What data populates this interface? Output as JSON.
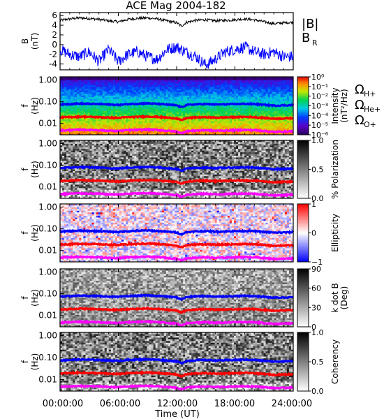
{
  "title": "ACE Mag 2004-182",
  "xlabel": "Time (UT)",
  "x_ticks": [
    "00:00:00",
    "06:00:00",
    "12:00:00",
    "18:00:00",
    "24:00:00"
  ],
  "x_tick_hours": [
    0,
    6,
    12,
    18,
    24
  ],
  "xlim_hours": [
    0,
    24
  ],
  "freq_ticks": [
    "1.00",
    "0.10",
    "0.01"
  ],
  "freq_tick_values": [
    1.0,
    0.1,
    0.01
  ],
  "freq_ylim_hz": [
    0.003,
    1.4
  ],
  "colors": {
    "B_total": "#000000",
    "B_R": "#0000ff",
    "H+": "#0000ff",
    "He+": "#ff0000",
    "O+": "#ff00ff"
  },
  "chart_data": [
    {
      "type": "line",
      "panel": "field",
      "ylabel": "B",
      "yunit": "(nT)",
      "yticks": [
        "6",
        "4",
        "2",
        "0",
        "-2",
        "-4"
      ],
      "ytick_values": [
        6,
        4,
        2,
        0,
        -2,
        -4
      ],
      "ylim": [
        -5.2,
        6.6
      ],
      "legend": [
        "|B|",
        "B"
      ],
      "legend_sub": [
        "",
        "R"
      ],
      "series": [
        {
          "name": "|B|",
          "color": "#000000",
          "x": [
            0,
            1,
            2,
            3,
            4,
            5,
            6,
            7,
            8,
            9,
            10,
            11,
            12,
            12.5,
            13,
            14,
            15,
            16,
            17,
            18,
            19,
            20,
            21,
            22,
            23,
            24
          ],
          "y": [
            5.0,
            5.3,
            5.5,
            5.4,
            5.2,
            4.9,
            4.7,
            5.2,
            5.4,
            5.5,
            5.3,
            4.9,
            4.5,
            3.8,
            4.6,
            5.0,
            5.1,
            4.9,
            5.0,
            5.1,
            5.3,
            5.1,
            4.7,
            4.3,
            4.5,
            4.6
          ]
        },
        {
          "name": "B_R",
          "color": "#0000ff",
          "x": [
            0,
            1,
            2,
            3,
            4,
            5,
            6,
            7,
            8,
            9,
            10,
            11,
            12,
            13,
            14,
            15,
            16,
            17,
            18,
            19,
            20,
            21,
            22,
            23,
            24
          ],
          "y": [
            -1,
            -2,
            -2.5,
            -1.5,
            -3.5,
            -1,
            -3.5,
            -2,
            -1.5,
            -2.5,
            -3,
            -1,
            -0.5,
            -1.5,
            -2.5,
            -4.2,
            -3,
            -1.5,
            -1,
            -0.5,
            -1.5,
            -2,
            -1.5,
            -2.5,
            -2.5
          ]
        }
      ]
    },
    {
      "type": "heatmap",
      "panel": "intensity",
      "ylabel": "f",
      "yunit": "(Hz)",
      "colorbar_label": "Intensity",
      "colorbar_unit": "(nT²/Hz)",
      "colorbar_ticks": [
        "10⁰",
        "10⁻¹",
        "10⁻²",
        "10⁻³",
        "10⁻⁴",
        "10⁻⁵",
        "10⁻⁶"
      ],
      "colorbar_tick_values": [
        0,
        -1,
        -2,
        -3,
        -4,
        -5,
        -6
      ],
      "colormap": "rainbow",
      "annotations": [
        "Ω",
        "Ω",
        "Ω"
      ],
      "annotation_subs": [
        "H+",
        "He+",
        "O+"
      ]
    },
    {
      "type": "heatmap",
      "panel": "polarization",
      "ylabel": "f",
      "yunit": "(Hz)",
      "colorbar_label": "% Polarization",
      "colorbar_ticks": [
        "1.0",
        "0.5",
        "0.0"
      ],
      "colorbar_tick_values": [
        1.0,
        0.5,
        0.0
      ],
      "colormap": "gray"
    },
    {
      "type": "heatmap",
      "panel": "ellipticity",
      "ylabel": "f",
      "yunit": "(Hz)",
      "colorbar_label": "Ellipticity",
      "colorbar_ticks": [
        "1",
        "0",
        "−1"
      ],
      "colorbar_tick_values": [
        1,
        0,
        -1
      ],
      "colormap": "blue-white-red"
    },
    {
      "type": "heatmap",
      "panel": "kdotb",
      "ylabel": "f",
      "yunit": "(Hz)",
      "colorbar_label": "k dot B",
      "colorbar_unit": "(Deg)",
      "colorbar_ticks": [
        "90",
        "60",
        "30",
        "0"
      ],
      "colorbar_tick_values": [
        90,
        60,
        30,
        0
      ],
      "colormap": "gray"
    },
    {
      "type": "heatmap",
      "panel": "coherency",
      "ylabel": "f",
      "yunit": "(Hz)",
      "colorbar_label": "Coherency",
      "colorbar_ticks": [
        "1.0",
        "0.5",
        "0.0"
      ],
      "colorbar_tick_values": [
        1.0,
        0.5,
        0.0
      ],
      "colormap": "gray"
    }
  ],
  "gyrofrequency_lines": {
    "x": [
      0,
      1,
      2,
      3,
      4,
      5,
      6,
      7,
      8,
      9,
      10,
      11,
      12,
      12.5,
      13,
      14,
      15,
      16,
      17,
      18,
      19,
      20,
      21,
      22,
      23,
      24
    ],
    "H+": [
      0.075,
      0.078,
      0.082,
      0.08,
      0.078,
      0.074,
      0.071,
      0.078,
      0.081,
      0.084,
      0.08,
      0.074,
      0.068,
      0.055,
      0.07,
      0.076,
      0.078,
      0.074,
      0.076,
      0.078,
      0.08,
      0.078,
      0.072,
      0.066,
      0.068,
      0.07
    ],
    "He+": [
      0.019,
      0.0195,
      0.0205,
      0.02,
      0.0195,
      0.0185,
      0.018,
      0.0195,
      0.02,
      0.021,
      0.02,
      0.0185,
      0.017,
      0.0138,
      0.0175,
      0.019,
      0.0195,
      0.0185,
      0.019,
      0.0195,
      0.02,
      0.0195,
      0.018,
      0.0165,
      0.017,
      0.0175
    ],
    "O+": [
      0.0047,
      0.0049,
      0.0051,
      0.005,
      0.0049,
      0.0046,
      0.0045,
      0.0049,
      0.005,
      0.0052,
      0.005,
      0.0046,
      0.0042,
      0.0035,
      0.0044,
      0.0047,
      0.0049,
      0.0046,
      0.0047,
      0.0049,
      0.005,
      0.0049,
      0.0045,
      0.0041,
      0.0042,
      0.0044
    ]
  }
}
